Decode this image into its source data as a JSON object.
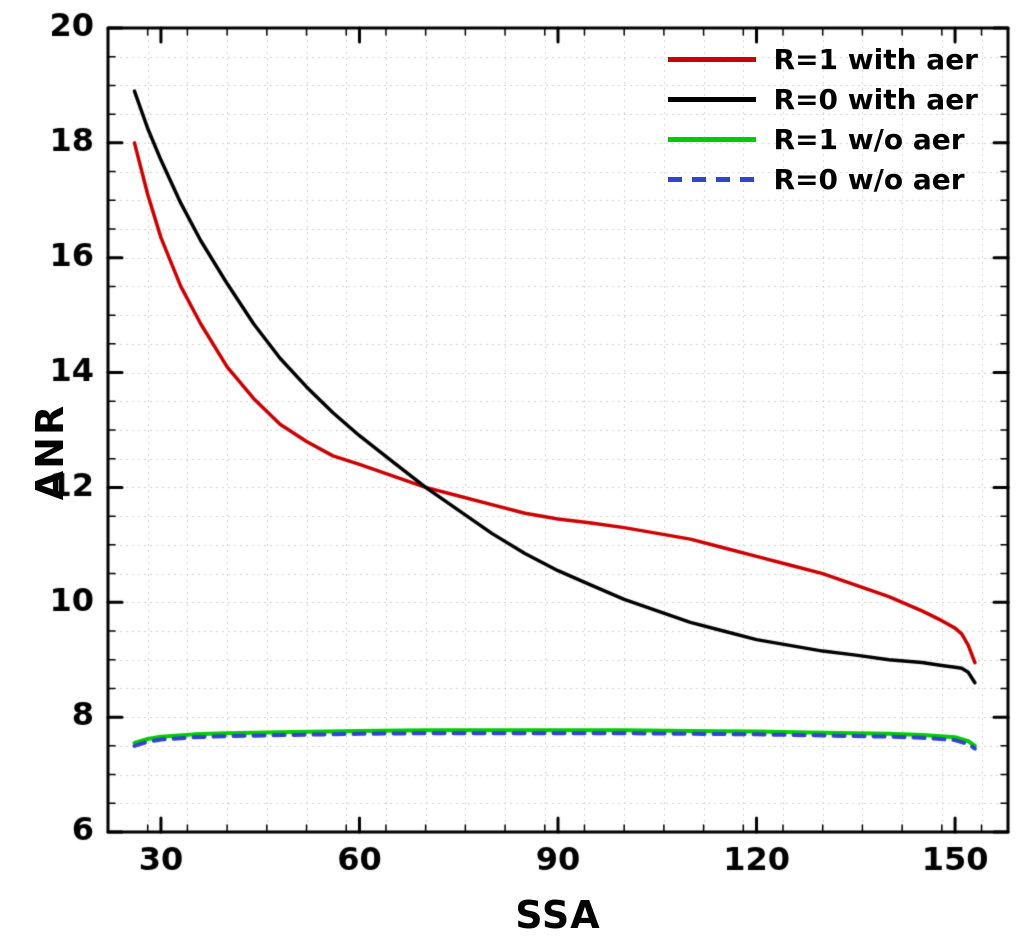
{
  "figure": {
    "background": "#ffffff",
    "axis_color": "#000000",
    "grid_color": "#d4d4d4"
  },
  "chart_data": {
    "type": "line",
    "title": "",
    "xlabel": "SSA",
    "ylabel": "ANR",
    "xlim": [
      22,
      158
    ],
    "ylim": [
      6,
      20
    ],
    "x_ticks": [
      30,
      60,
      90,
      120,
      150
    ],
    "y_ticks": [
      6,
      8,
      10,
      12,
      14,
      16,
      18,
      20
    ],
    "x_minor_step": 6,
    "y_minor_step": 0.5,
    "grid": "dotted-minor",
    "legend_position": "top-right",
    "series": [
      {
        "name": "R=1 with aer",
        "color": "#cc0000",
        "dash": false,
        "width": 3.5,
        "points": [
          [
            26,
            18.0
          ],
          [
            28,
            17.1
          ],
          [
            30,
            16.35
          ],
          [
            33,
            15.5
          ],
          [
            36,
            14.85
          ],
          [
            40,
            14.1
          ],
          [
            44,
            13.55
          ],
          [
            48,
            13.1
          ],
          [
            52,
            12.8
          ],
          [
            56,
            12.55
          ],
          [
            60,
            12.4
          ],
          [
            65,
            12.2
          ],
          [
            70,
            12.0
          ],
          [
            75,
            11.85
          ],
          [
            80,
            11.7
          ],
          [
            85,
            11.55
          ],
          [
            90,
            11.45
          ],
          [
            95,
            11.38
          ],
          [
            100,
            11.3
          ],
          [
            105,
            11.2
          ],
          [
            110,
            11.1
          ],
          [
            115,
            10.95
          ],
          [
            120,
            10.8
          ],
          [
            125,
            10.65
          ],
          [
            130,
            10.5
          ],
          [
            135,
            10.3
          ],
          [
            140,
            10.1
          ],
          [
            145,
            9.85
          ],
          [
            148,
            9.68
          ],
          [
            150,
            9.55
          ],
          [
            151,
            9.45
          ],
          [
            152,
            9.25
          ],
          [
            153,
            8.95
          ]
        ]
      },
      {
        "name": "R=0 with aer",
        "color": "#000000",
        "dash": false,
        "width": 3.5,
        "points": [
          [
            26,
            18.9
          ],
          [
            28,
            18.25
          ],
          [
            30,
            17.7
          ],
          [
            33,
            16.95
          ],
          [
            36,
            16.3
          ],
          [
            40,
            15.55
          ],
          [
            44,
            14.85
          ],
          [
            48,
            14.25
          ],
          [
            52,
            13.75
          ],
          [
            56,
            13.3
          ],
          [
            60,
            12.9
          ],
          [
            65,
            12.45
          ],
          [
            70,
            12.0
          ],
          [
            75,
            11.6
          ],
          [
            80,
            11.2
          ],
          [
            85,
            10.85
          ],
          [
            90,
            10.55
          ],
          [
            95,
            10.3
          ],
          [
            100,
            10.05
          ],
          [
            105,
            9.85
          ],
          [
            110,
            9.65
          ],
          [
            115,
            9.5
          ],
          [
            120,
            9.35
          ],
          [
            125,
            9.25
          ],
          [
            130,
            9.15
          ],
          [
            135,
            9.08
          ],
          [
            140,
            9.0
          ],
          [
            145,
            8.95
          ],
          [
            148,
            8.9
          ],
          [
            150,
            8.87
          ],
          [
            151,
            8.85
          ],
          [
            152,
            8.78
          ],
          [
            153,
            8.6
          ]
        ]
      },
      {
        "name": "R=1 w/o aer",
        "color": "#00cc00",
        "dash": false,
        "width": 4,
        "points": [
          [
            26,
            7.55
          ],
          [
            28,
            7.62
          ],
          [
            30,
            7.66
          ],
          [
            35,
            7.7
          ],
          [
            40,
            7.72
          ],
          [
            50,
            7.74
          ],
          [
            60,
            7.76
          ],
          [
            70,
            7.77
          ],
          [
            80,
            7.77
          ],
          [
            90,
            7.77
          ],
          [
            100,
            7.77
          ],
          [
            110,
            7.76
          ],
          [
            120,
            7.75
          ],
          [
            130,
            7.73
          ],
          [
            140,
            7.71
          ],
          [
            145,
            7.69
          ],
          [
            150,
            7.65
          ],
          [
            152,
            7.58
          ],
          [
            153,
            7.5
          ]
        ]
      },
      {
        "name": "R=0 w/o aer",
        "color": "#3344cc",
        "dash": true,
        "width": 4,
        "points": [
          [
            26,
            7.5
          ],
          [
            28,
            7.57
          ],
          [
            30,
            7.61
          ],
          [
            35,
            7.65
          ],
          [
            40,
            7.67
          ],
          [
            50,
            7.69
          ],
          [
            60,
            7.71
          ],
          [
            70,
            7.72
          ],
          [
            80,
            7.72
          ],
          [
            90,
            7.72
          ],
          [
            100,
            7.72
          ],
          [
            110,
            7.71
          ],
          [
            120,
            7.7
          ],
          [
            130,
            7.68
          ],
          [
            140,
            7.66
          ],
          [
            145,
            7.64
          ],
          [
            150,
            7.6
          ],
          [
            152,
            7.53
          ],
          [
            153,
            7.45
          ]
        ]
      }
    ]
  }
}
